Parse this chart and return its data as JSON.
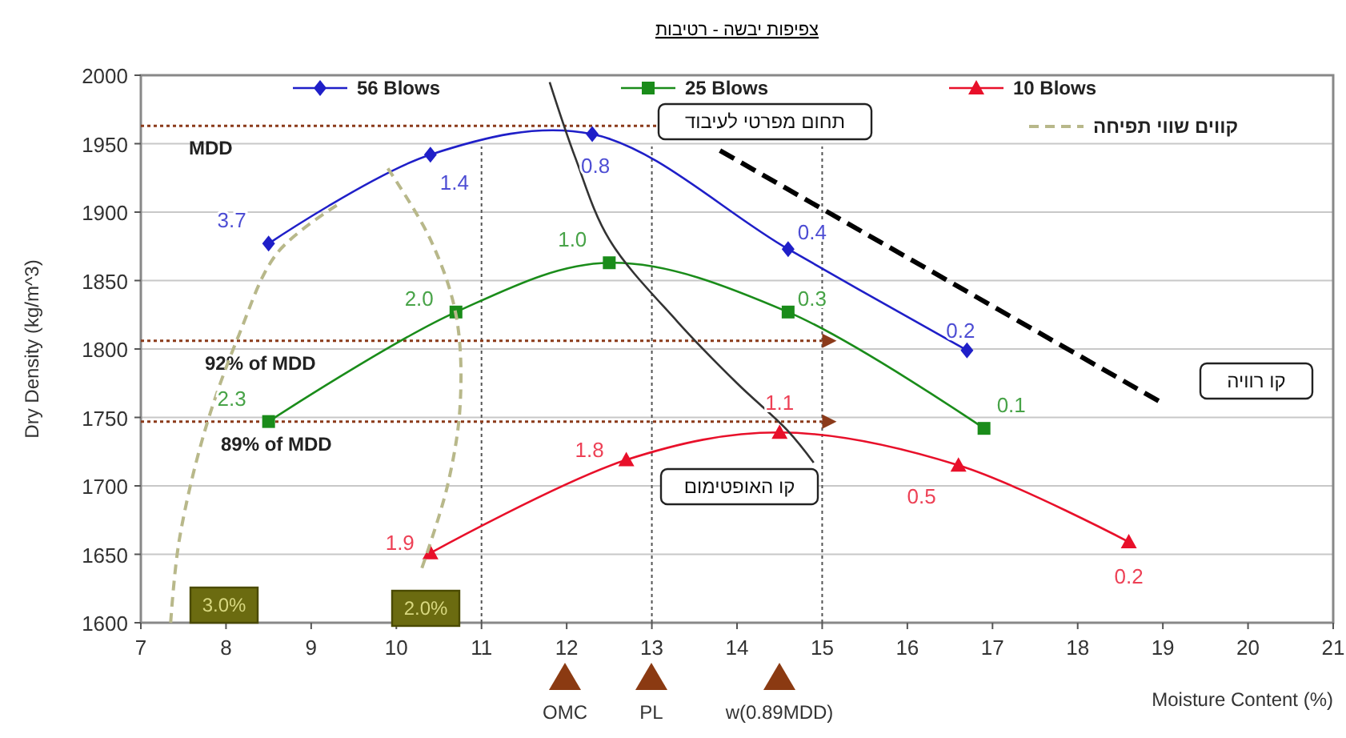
{
  "chart_data": {
    "type": "line",
    "title": "צפיפות יבשה - רטיבות",
    "xlabel": "Moisture Content (%)",
    "ylabel": "Dry Density (kg/m^3)",
    "xlim": [
      7,
      21
    ],
    "xticks": [
      7,
      8,
      9,
      10,
      11,
      12,
      13,
      14,
      15,
      16,
      17,
      18,
      19,
      20,
      21
    ],
    "ylim": [
      1600,
      2000
    ],
    "yticks": [
      1600,
      1650,
      1700,
      1750,
      1800,
      1850,
      1900,
      1950,
      2000
    ],
    "grid": "y",
    "legend": "top",
    "series": [
      {
        "name": "56 Blows",
        "color": "#1f1fc8",
        "marker": "diamond",
        "x": [
          8.5,
          10.4,
          12.3,
          14.6,
          16.7
        ],
        "values": [
          1877,
          1942,
          1957,
          1873,
          1799
        ]
      },
      {
        "name": "25 Blows",
        "color": "#1a8c1a",
        "marker": "square",
        "x": [
          8.5,
          10.7,
          12.5,
          14.6,
          16.9
        ],
        "values": [
          1747,
          1827,
          1863,
          1827,
          1742
        ]
      },
      {
        "name": "10 Blows",
        "color": "#e8102a",
        "marker": "triangle",
        "x": [
          10.4,
          12.7,
          14.5,
          16.6,
          18.6
        ],
        "values": [
          1651,
          1719,
          1739,
          1715,
          1659
        ]
      },
      {
        "name": "קווים שווי תפיחה",
        "color": "#b8b88a",
        "marker": "none",
        "line_style": "dashed",
        "x": [
          7.35,
          7.45,
          7.75,
          8.15,
          8.6,
          9.3
        ],
        "values": [
          1600,
          1660,
          1740,
          1810,
          1870,
          1905
        ]
      },
      {
        "color": "#b8b88a",
        "marker": "none",
        "line_style": "dashed",
        "x": [
          9.9,
          10.4,
          10.7,
          10.75,
          10.6,
          10.3
        ],
        "values": [
          1932,
          1880,
          1825,
          1760,
          1700,
          1640
        ]
      },
      {
        "color": "#333333",
        "marker": "none",
        "line_style": "solid",
        "x": [
          11.8,
          12.1,
          12.5,
          13.3,
          14.0,
          14.6,
          14.9
        ],
        "values": [
          1995,
          1940,
          1880,
          1820,
          1775,
          1740,
          1717
        ]
      },
      {
        "color": "#000000",
        "marker": "none",
        "line_style": "dashed",
        "x": [
          13.8,
          18.95
        ],
        "values": [
          1945,
          1762
        ]
      }
    ],
    "ref_lines": [
      {
        "axis": "y",
        "value": 1963,
        "label": "MDD",
        "color": "#8b3a1a",
        "line_style": "dotted"
      },
      {
        "axis": "y",
        "value": 1806,
        "label": "92% of MDD",
        "color": "#8b3a1a",
        "line_style": "dotted"
      },
      {
        "axis": "y",
        "value": 1747,
        "label": "89% of MDD",
        "color": "#8b3a1a",
        "line_style": "dotted"
      },
      {
        "axis": "x",
        "value": 11,
        "color": "#555555",
        "line_style": "dotted"
      },
      {
        "axis": "x",
        "value": 13,
        "color": "#555555",
        "line_style": "dotted"
      },
      {
        "axis": "x",
        "value": 15,
        "color": "#555555",
        "line_style": "dotted"
      }
    ],
    "annotations": [
      "תחום מפרטי לעיבוד",
      "קו האופטימום",
      "קו רוויה",
      "3.0%",
      "2.0%",
      "OMC",
      "PL",
      "w(0.89MDD)",
      {
        "text": "3.7",
        "x": 8.5,
        "y": 1877
      },
      {
        "text": "1.4",
        "x": 10.4,
        "y": 1942
      },
      {
        "text": "0.8",
        "x": 12.3,
        "y": 1957
      },
      {
        "text": "0.4",
        "x": 14.6,
        "y": 1873
      },
      {
        "text": "0.2",
        "x": 16.7,
        "y": 1799
      },
      {
        "text": "2.3",
        "x": 8.5,
        "y": 1747
      },
      {
        "text": "2.0",
        "x": 10.7,
        "y": 1827
      },
      {
        "text": "1.0",
        "x": 12.5,
        "y": 1863
      },
      {
        "text": "0.3",
        "x": 14.6,
        "y": 1827
      },
      {
        "text": "0.1",
        "x": 16.9,
        "y": 1742
      },
      {
        "text": "1.9",
        "x": 10.4,
        "y": 1651
      },
      {
        "text": "1.8",
        "x": 12.7,
        "y": 1719
      },
      {
        "text": "1.1",
        "x": 14.5,
        "y": 1739
      },
      {
        "text": "0.5",
        "x": 16.6,
        "y": 1715
      },
      {
        "text": "0.2",
        "x": 18.6,
        "y": 1659
      }
    ]
  }
}
